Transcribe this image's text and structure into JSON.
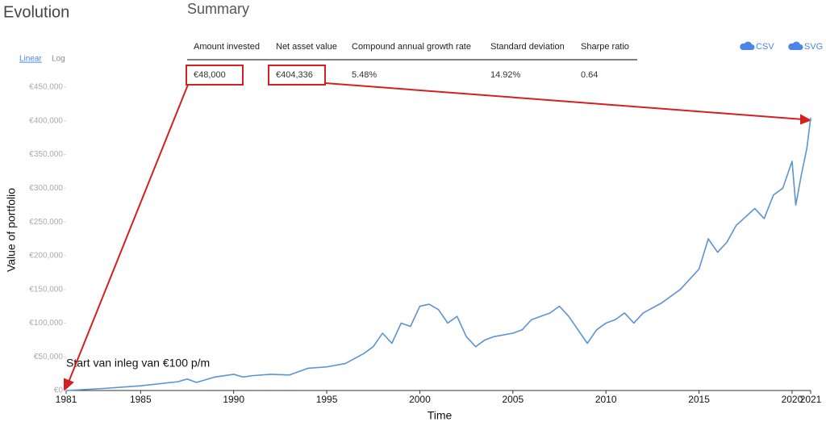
{
  "header": {
    "title": "Evolution"
  },
  "controls": {
    "scale_options": [
      "Linear",
      "Log"
    ],
    "downloads": [
      "CSV",
      "SVG"
    ]
  },
  "summary": {
    "title": "Summary",
    "headers": [
      "Amount invested",
      "Net asset value",
      "Compound annual growth rate",
      "Standard deviation",
      "Sharpe ratio"
    ],
    "values": [
      "€48,000",
      "€404,336",
      "5.48%",
      "14.92%",
      "0.64"
    ]
  },
  "chart_data": {
    "type": "line",
    "xlabel": "Time",
    "ylabel": "Value of portfolio",
    "annotation": "Start van inleg van €100 p/m",
    "color": "#5b93d3",
    "x": [
      1981,
      1983,
      1985,
      1987,
      1987.5,
      1988,
      1989,
      1990,
      1990.5,
      1991,
      1992,
      1993,
      1994,
      1995,
      1996,
      1997,
      1997.5,
      1998,
      1998.5,
      1999,
      1999.5,
      2000,
      2000.5,
      2001,
      2001.5,
      2002,
      2002.5,
      2003,
      2003.5,
      2004,
      2005,
      2005.5,
      2006,
      2007,
      2007.5,
      2008,
      2008.5,
      2009,
      2009.5,
      2010,
      2010.5,
      2011,
      2011.5,
      2012,
      2013,
      2014,
      2015,
      2015.5,
      2016,
      2016.5,
      2017,
      2018,
      2018.5,
      2019,
      2019.5,
      2020,
      2020.2,
      2020.5,
      2020.8,
      2021
    ],
    "values": [
      0,
      3000,
      7000,
      13000,
      17000,
      12000,
      20000,
      24000,
      20000,
      22000,
      24000,
      23000,
      33000,
      35000,
      40000,
      55000,
      65000,
      85000,
      70000,
      100000,
      95000,
      125000,
      128000,
      120000,
      100000,
      110000,
      80000,
      65000,
      75000,
      80000,
      85000,
      90000,
      105000,
      115000,
      125000,
      110000,
      90000,
      70000,
      90000,
      100000,
      105000,
      115000,
      100000,
      115000,
      130000,
      150000,
      180000,
      225000,
      205000,
      220000,
      245000,
      270000,
      255000,
      290000,
      300000,
      340000,
      275000,
      320000,
      360000,
      404336
    ],
    "xlim": [
      1981,
      2021
    ],
    "xticks": [
      1981,
      1985,
      1990,
      1995,
      2000,
      2005,
      2010,
      2015,
      2020,
      2021
    ],
    "ylim": [
      0,
      450000
    ],
    "yticks": [
      {
        "value": 0,
        "label": "€0"
      },
      {
        "value": 50000,
        "label": "€50,000"
      },
      {
        "value": 100000,
        "label": "€100,000"
      },
      {
        "value": 150000,
        "label": "€150,000"
      },
      {
        "value": 200000,
        "label": "€200,000"
      },
      {
        "value": 250000,
        "label": "€250,000"
      },
      {
        "value": 300000,
        "label": "€300,000"
      },
      {
        "value": 350000,
        "label": "€350,000"
      },
      {
        "value": 400000,
        "label": "€400,000"
      },
      {
        "value": 450000,
        "label": "€450,000"
      }
    ],
    "grid": false
  }
}
